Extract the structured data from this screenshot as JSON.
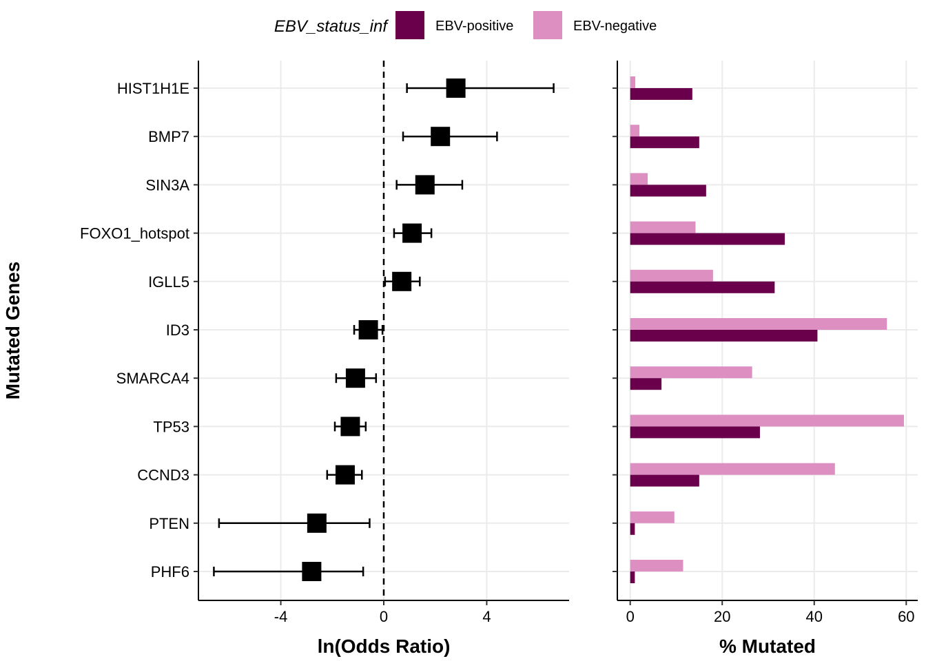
{
  "legend": {
    "title": "EBV_status_inf",
    "entries": [
      {
        "label": "EBV-positive",
        "color": "#6A004C"
      },
      {
        "label": "EBV-negative",
        "color": "#DD8FC2"
      }
    ]
  },
  "shared": {
    "ylabel": "Mutated Genes"
  },
  "chart_data": [
    {
      "type": "scatter",
      "subtype": "forest-plot-with-error-bars",
      "xlabel": "ln(Odds Ratio)",
      "ylabel": "Mutated Genes",
      "xlim": [
        -7.2,
        7.2
      ],
      "xticks": [
        -4,
        0,
        4
      ],
      "xtick_labels": [
        "-4",
        "0",
        "4"
      ],
      "reference_line": {
        "x": 0,
        "style": "dashed"
      },
      "grid": true,
      "categories": [
        "HIST1H1E",
        "BMP7",
        "SIN3A",
        "FOXO1_hotspot",
        "IGLL5",
        "ID3",
        "SMARCA4",
        "TP53",
        "CCND3",
        "PTEN",
        "PHF6"
      ],
      "estimate": [
        2.8,
        2.2,
        1.6,
        1.1,
        0.7,
        -0.6,
        -1.1,
        -1.3,
        -1.5,
        -2.6,
        -2.8
      ],
      "ci_low": [
        0.9,
        0.75,
        0.5,
        0.4,
        0.05,
        -1.15,
        -1.85,
        -1.9,
        -2.2,
        -6.4,
        -6.6
      ],
      "ci_high": [
        6.6,
        4.4,
        3.05,
        1.85,
        1.4,
        -0.05,
        -0.3,
        -0.7,
        -0.85,
        -0.55,
        -0.8
      ],
      "marker_color": "#000000"
    },
    {
      "type": "bar",
      "orientation": "horizontal",
      "xlabel": "% Mutated",
      "xlim": [
        -2.8,
        62.5
      ],
      "xticks": [
        0,
        20,
        40,
        60
      ],
      "xtick_labels": [
        "0",
        "20",
        "40",
        "60"
      ],
      "grid": true,
      "categories": [
        "HIST1H1E",
        "BMP7",
        "SIN3A",
        "FOXO1_hotspot",
        "IGLL5",
        "ID3",
        "SMARCA4",
        "TP53",
        "CCND3",
        "PTEN",
        "PHF6"
      ],
      "series": [
        {
          "name": "EBV-positive",
          "color": "#6A004C",
          "values": [
            13.5,
            15.0,
            16.5,
            33.6,
            31.4,
            40.7,
            6.8,
            28.2,
            15.0,
            1.0,
            1.0
          ]
        },
        {
          "name": "EBV-negative",
          "color": "#DD8FC2",
          "values": [
            1.1,
            2.0,
            3.8,
            14.2,
            18.0,
            55.8,
            26.5,
            59.5,
            44.5,
            9.6,
            11.5
          ]
        }
      ]
    }
  ]
}
